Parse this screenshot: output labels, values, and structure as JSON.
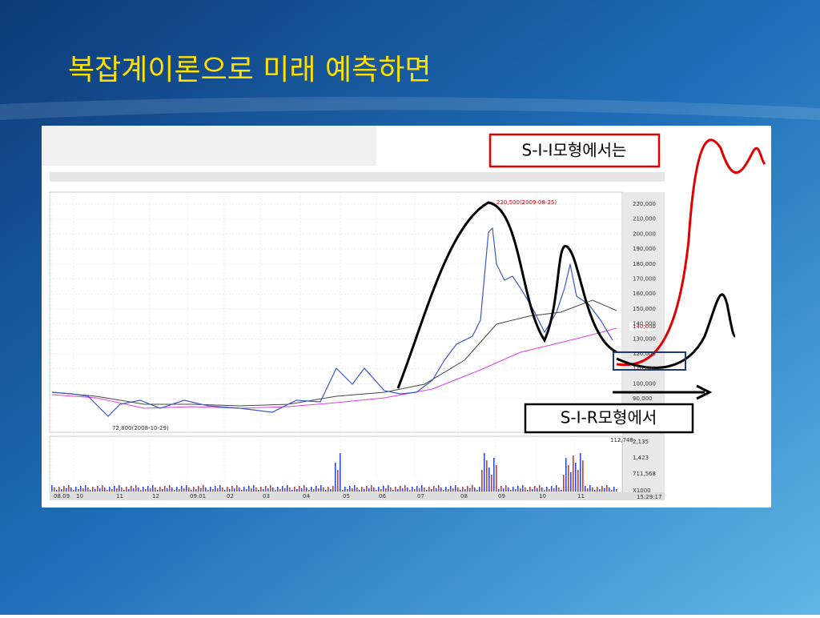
{
  "title": "복잡계이론으로 미래 예측하면",
  "callouts": {
    "sii": "S-I-I모형에서는",
    "sir": "S-I-R모형에서"
  },
  "chart": {
    "price_labels": [
      "220,000",
      "210,000",
      "200,000",
      "190,000",
      "180,000",
      "170,000",
      "160,000",
      "150,000",
      "140,000",
      "130,000",
      "120,000",
      "110,000",
      "100,000",
      "90,000"
    ],
    "date_labels": [
      "08.09",
      "10",
      "11",
      "12",
      "09.01",
      "02",
      "03",
      "04",
      "05",
      "06",
      "07",
      "08",
      "09",
      "10",
      "11"
    ],
    "high_note": "220,500(2009-08-25)",
    "low_note": "72,800(2008-10-29)",
    "current_price": "140,000",
    "volume_labels": [
      "2,135",
      "1,423",
      "711,568"
    ],
    "volume_unit": "X1000",
    "last_volume": "112,748",
    "time": "15:29:17"
  }
}
